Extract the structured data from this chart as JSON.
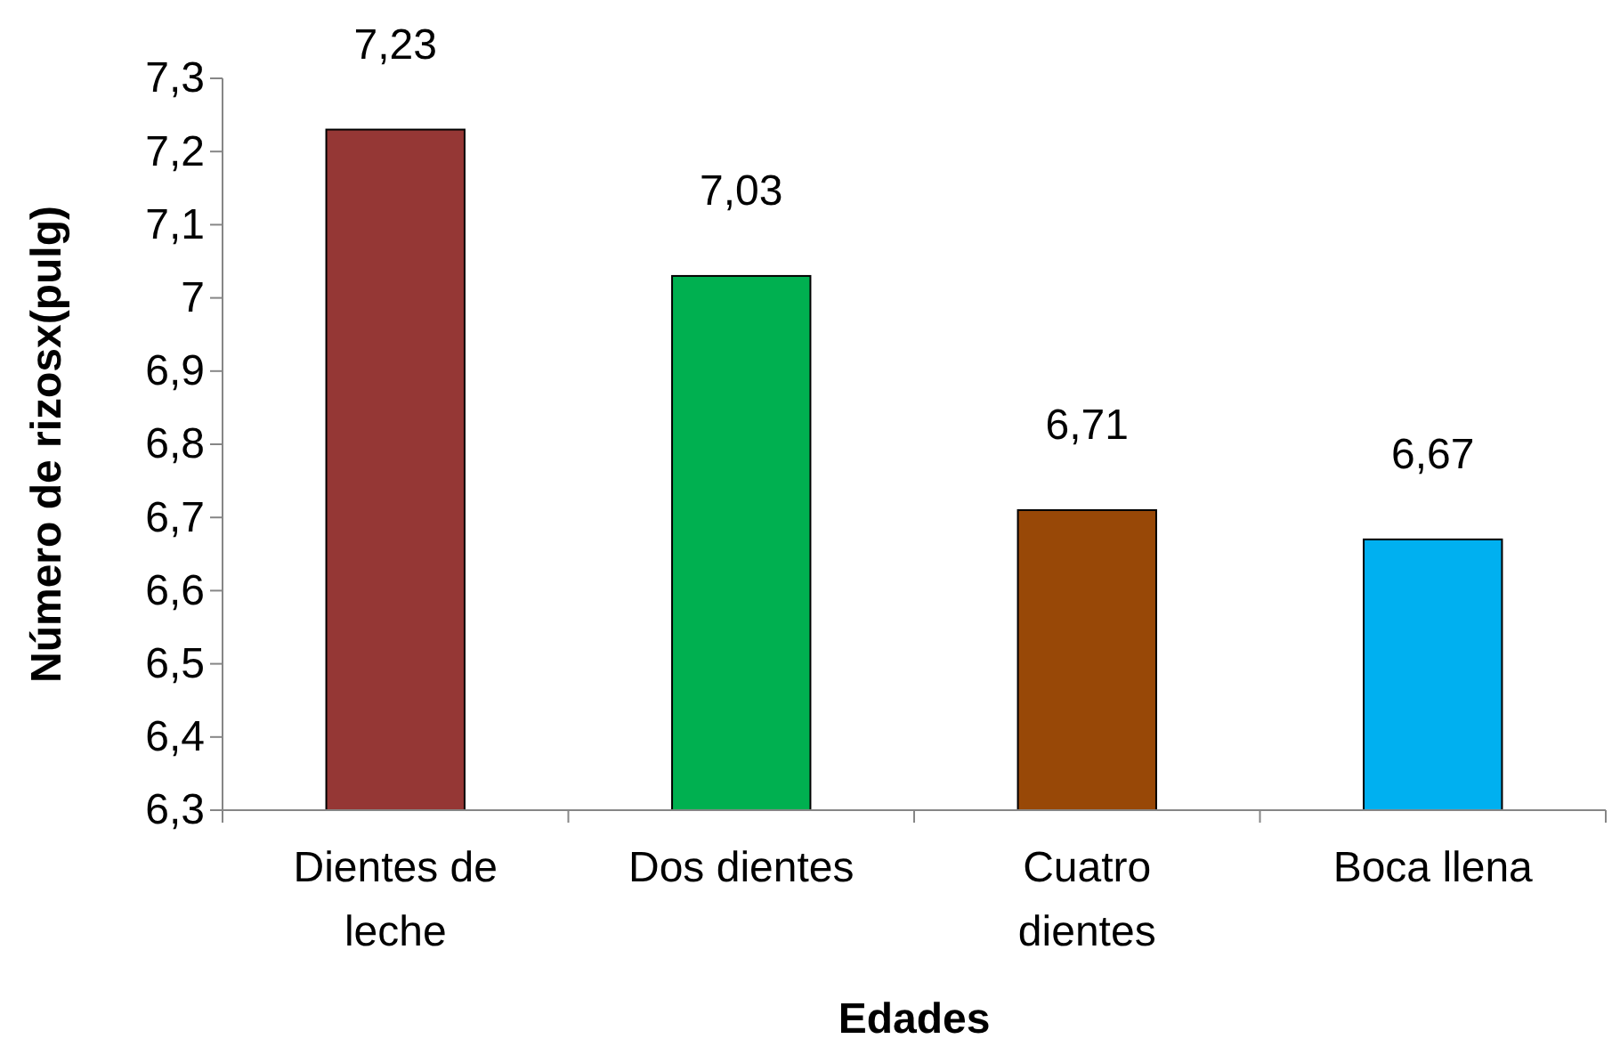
{
  "chart_data": {
    "type": "bar",
    "xlabel": "Edades",
    "ylabel": "Número de rizosx(pulg)",
    "categories": [
      "Dientes de leche",
      "Dos dientes",
      "Cuatro dientes",
      "Boca llena"
    ],
    "values": [
      7.23,
      7.03,
      6.71,
      6.67
    ],
    "colors": [
      "#953735",
      "#00b050",
      "#984807",
      "#00b0f0"
    ],
    "value_labels": [
      "7,23",
      "7,03",
      "6,71",
      "6,67"
    ],
    "ylim": [
      6.3,
      7.3
    ],
    "yticks": [
      {
        "value": 6.3,
        "label": "6,3"
      },
      {
        "value": 6.4,
        "label": "6,4"
      },
      {
        "value": 6.5,
        "label": "6,5"
      },
      {
        "value": 6.6,
        "label": "6,6"
      },
      {
        "value": 6.7,
        "label": "6,7"
      },
      {
        "value": 6.8,
        "label": "6,8"
      },
      {
        "value": 6.9,
        "label": "6,9"
      },
      {
        "value": 7,
        "label": "7"
      },
      {
        "value": 7.1,
        "label": "7,1"
      },
      {
        "value": 7.2,
        "label": "7,2"
      },
      {
        "value": 7.3,
        "label": "7,3"
      }
    ],
    "grid": false
  }
}
